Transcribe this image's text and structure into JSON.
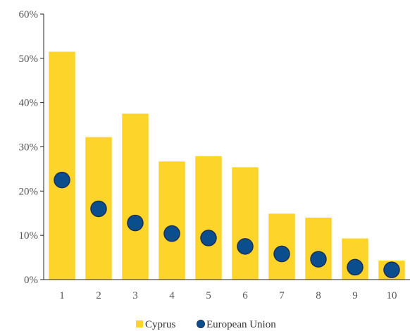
{
  "chart_data": {
    "type": "bar",
    "categories": [
      "1",
      "2",
      "3",
      "4",
      "5",
      "6",
      "7",
      "8",
      "9",
      "10"
    ],
    "series": [
      {
        "name": "Cyprus",
        "kind": "bar",
        "color": "#FDD42A",
        "values": [
          51.5,
          32.2,
          37.5,
          26.7,
          27.9,
          25.4,
          14.9,
          14.0,
          9.3,
          4.3
        ]
      },
      {
        "name": "European Union",
        "kind": "marker",
        "color": "#0B4E8E",
        "stroke": "#1B2F55",
        "values": [
          22.5,
          16.0,
          12.8,
          10.4,
          9.4,
          7.5,
          5.8,
          4.6,
          2.8,
          2.2
        ]
      }
    ],
    "ylim": [
      0,
      60
    ],
    "yticks": [
      0,
      10,
      20,
      30,
      40,
      50,
      60
    ],
    "ytick_labels": [
      "0%",
      "10%",
      "20%",
      "30%",
      "40%",
      "50%",
      "60%"
    ],
    "title": "",
    "xlabel": "",
    "ylabel": "",
    "grid": false,
    "legend_position": "bottom-center"
  }
}
